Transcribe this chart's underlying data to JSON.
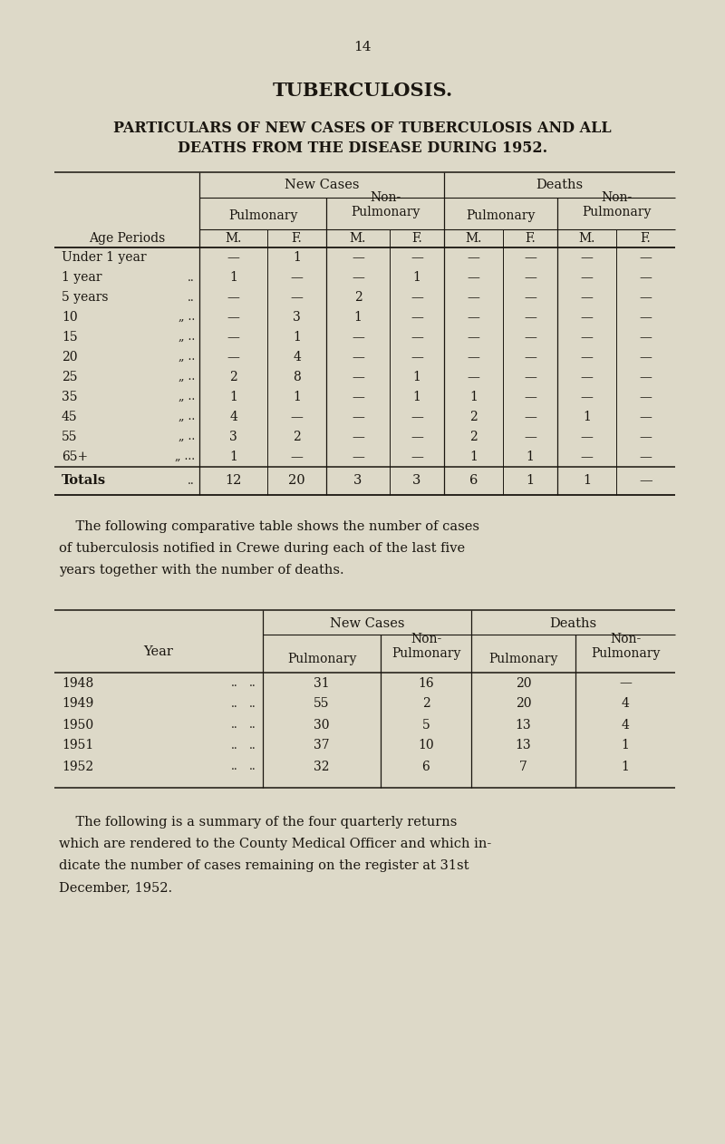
{
  "bg_color": "#ddd9c8",
  "text_color": "#1a1610",
  "page_number": "14",
  "title": "TUBERCULOSIS.",
  "subtitle1": "PARTICULARS OF NEW CASES OF TUBERCULOSIS AND ALL",
  "subtitle2": "DEATHS FROM THE DISEASE DURING 1952.",
  "table1_rows": [
    [
      "Under 1 year",
      "",
      "—",
      "1",
      "—",
      "—",
      "—",
      "—",
      "—",
      "—"
    ],
    [
      "1 year",
      "..",
      "1",
      "—",
      "—",
      "1",
      "—",
      "—",
      "—",
      "—"
    ],
    [
      "5 years",
      "..",
      "—",
      "—",
      "2",
      "—",
      "—",
      "—",
      "—",
      "—"
    ],
    [
      "10",
      "„ ..",
      "—",
      "3",
      "1",
      "—",
      "—",
      "—",
      "—",
      "—"
    ],
    [
      "15",
      "„ ..",
      "—",
      "1",
      "—",
      "—",
      "—",
      "—",
      "—",
      "—"
    ],
    [
      "20",
      "„ ..",
      "—",
      "4",
      "—",
      "—",
      "—",
      "—",
      "—",
      "—"
    ],
    [
      "25",
      "„ ..",
      "2",
      "8",
      "—",
      "1",
      "—",
      "—",
      "—",
      "—"
    ],
    [
      "35",
      "„ ..",
      "1",
      "1",
      "—",
      "1",
      "1",
      "—",
      "—",
      "—"
    ],
    [
      "45",
      "„ ..",
      "4",
      "—",
      "—",
      "—",
      "2",
      "—",
      "1",
      "—"
    ],
    [
      "55",
      "„ ..",
      "3",
      "2",
      "—",
      "—",
      "2",
      "—",
      "—",
      "—"
    ],
    [
      "65+",
      "„ ...",
      "1",
      "—",
      "—",
      "—",
      "1",
      "1",
      "—",
      "—"
    ]
  ],
  "table1_totals": [
    "12",
    "20",
    "3",
    "3",
    "6",
    "1",
    "1",
    "—"
  ],
  "para1": [
    "    The following comparative table shows the number of cases",
    "of tuberculosis notified in Crewe during each of the last five",
    "years together with the number of deaths."
  ],
  "table2_rows": [
    [
      "1948",
      "..",
      "..",
      "31",
      "16",
      "20",
      "—"
    ],
    [
      "1949",
      "..",
      "..",
      "55",
      "2",
      "20",
      "4"
    ],
    [
      "1950",
      "..",
      "..",
      "30",
      "5",
      "13",
      "4"
    ],
    [
      "1951",
      "..",
      "..",
      "37",
      "10",
      "13",
      "1"
    ],
    [
      "1952",
      "..",
      "..",
      "32",
      "6",
      "7",
      "1"
    ]
  ],
  "para2": [
    "    The following is a summary of the four quarterly returns",
    "which are rendered to the County Medical Officer and which in-",
    "dicate the number of cases remaining on the register at 31st",
    "December, 1952."
  ]
}
